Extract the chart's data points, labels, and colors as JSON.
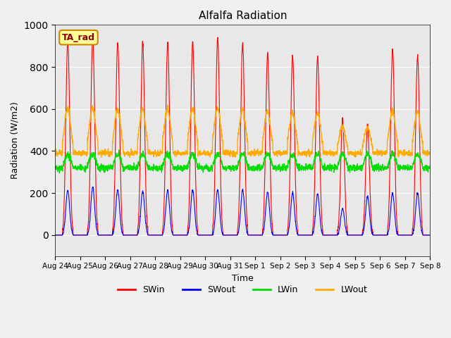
{
  "title": "Alfalfa Radiation",
  "ylabel": "Radiation (W/m2)",
  "xlabel": "Time",
  "annotation": "TA_rad",
  "ylim": [
    -100,
    1000
  ],
  "x_tick_labels": [
    "Aug 24",
    "Aug 25",
    "Aug 26",
    "Aug 27",
    "Aug 28",
    "Aug 29",
    "Aug 30",
    "Aug 31",
    "Sep 1",
    "Sep 2",
    "Sep 3",
    "Sep 4",
    "Sep 5",
    "Sep 6",
    "Sep 7",
    "Sep 8"
  ],
  "colors": {
    "SWin": "#ff0000",
    "SWout": "#0000ff",
    "LWin": "#00dd00",
    "LWout": "#ffaa00"
  },
  "plot_bg": "#e8e8e8",
  "fig_bg": "#f0f0f0",
  "n_days": 15,
  "SWin_peaks": [
    930,
    945,
    915,
    915,
    915,
    920,
    940,
    910,
    865,
    850,
    850,
    550,
    520,
    885,
    855
  ],
  "SWout_peaks": [
    215,
    230,
    215,
    210,
    215,
    215,
    215,
    215,
    205,
    200,
    195,
    125,
    185,
    200,
    200
  ],
  "LWin_base": 320,
  "LWout_night_base": 390,
  "LWout_day_add": 215
}
